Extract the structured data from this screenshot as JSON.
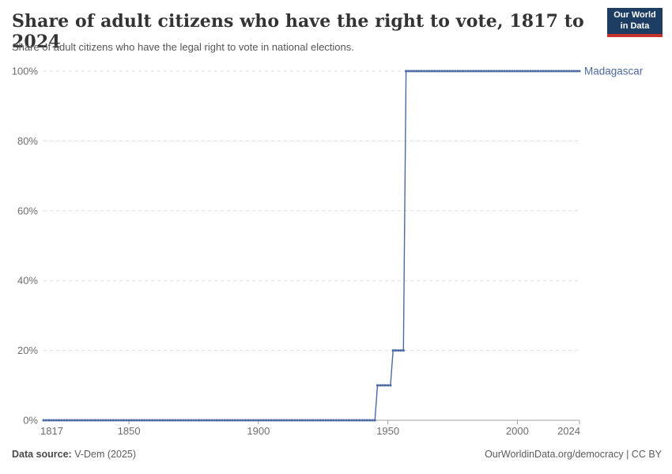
{
  "header": {
    "title": "Share of adult citizens who have the right to vote, 1817 to 2024",
    "subtitle": "Share of adult citizens who have the legal right to vote in national elections.",
    "logo": {
      "line1": "Our World",
      "line2": "in Data"
    }
  },
  "footer": {
    "source_label": "Data source:",
    "source_value": " V-Dem (2025)",
    "right_text": "OurWorldinData.org/democracy | CC BY"
  },
  "colors": {
    "series_blue": "#4c69a1",
    "grid": "#dddddd",
    "axis": "#a3a3a3",
    "tick_label": "#6e6e6e",
    "logo_navy": "#1d3d63",
    "logo_red": "#c5332d"
  },
  "chart_data": {
    "type": "line",
    "title": "Share of adult citizens who have the right to vote, 1817 to 2024",
    "subtitle": "Share of adult citizens who have the legal right to vote in national elections.",
    "xlabel": "",
    "ylabel": "",
    "xlim": [
      1817,
      2024
    ],
    "ylim": [
      0,
      100
    ],
    "x_ticks": [
      1817,
      1850,
      1900,
      1950,
      2000,
      2024
    ],
    "y_ticks": [
      0,
      20,
      40,
      60,
      80,
      100
    ],
    "y_tick_suffix": "%",
    "grid": true,
    "legend_position": "end-of-line-label",
    "series": [
      {
        "name": "Madagascar",
        "marker": "square-dot",
        "segments": [
          {
            "from": 1817,
            "to": 1945,
            "value": 0
          },
          {
            "from": 1946,
            "to": 1951,
            "value": 10
          },
          {
            "from": 1952,
            "to": 1956,
            "value": 20
          },
          {
            "from": 1957,
            "to": 2024,
            "value": 100
          }
        ]
      }
    ]
  }
}
